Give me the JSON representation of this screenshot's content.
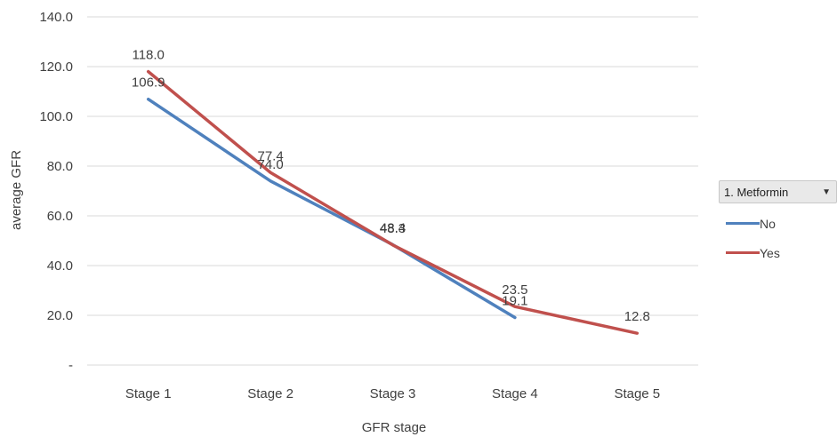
{
  "chart_data": {
    "type": "line",
    "categories": [
      "Stage 1",
      "Stage 2",
      "Stage 3",
      "Stage 4",
      "Stage 5"
    ],
    "series": [
      {
        "name": "No",
        "color": "#4f81bd",
        "values": [
          106.9,
          74.0,
          48.4,
          19.1,
          null
        ],
        "labels": [
          "106.9",
          "74.0",
          "48.4",
          "19.1",
          ""
        ]
      },
      {
        "name": "Yes",
        "color": "#c0504d",
        "values": [
          118.0,
          77.4,
          48.3,
          23.5,
          12.8
        ],
        "labels": [
          "118.0",
          "77.4",
          "48.3",
          "23.5",
          "12.8"
        ]
      }
    ],
    "xlabel": "GFR stage",
    "ylabel": "average GFR",
    "ylim": [
      0,
      140
    ],
    "yticks": [
      0,
      20,
      40,
      60,
      80,
      100,
      120,
      140
    ],
    "ytick_labels": [
      "-",
      "20.0",
      "40.0",
      "60.0",
      "80.0",
      "100.0",
      "120.0",
      "140.0"
    ],
    "grid": true,
    "legend_position": "right"
  },
  "legend": {
    "filter_label": "1. Metformin",
    "filter_icon": "dropdown-arrow-icon"
  }
}
